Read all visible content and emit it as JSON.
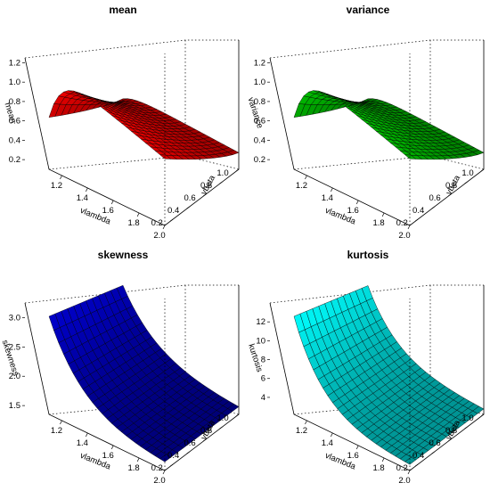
{
  "chart_data": [
    {
      "type": "surface3d",
      "title": "mean",
      "xlabel": "vlambda",
      "ylabel": "vbeta",
      "zlabel": "mean",
      "x_ticks": [
        "1.2",
        "1.4",
        "1.6",
        "1.8",
        "2.0"
      ],
      "y_ticks": [
        "0.2",
        "0.4",
        "0.6",
        "0.8",
        "1.0"
      ],
      "z_ticks": [
        "0.2",
        "0.4",
        "0.6",
        "0.8",
        "1.0",
        "1.2"
      ],
      "xlim": [
        1.1,
        2.0
      ],
      "ylim": [
        0.1,
        1.0
      ],
      "zlim": [
        0.1,
        1.25
      ],
      "color": "#ff0000",
      "surface_range": [
        0.14,
        0.93
      ]
    },
    {
      "type": "surface3d",
      "title": "variance",
      "xlabel": "vlambda",
      "ylabel": "vbeta",
      "zlabel": "variance",
      "x_ticks": [
        "1.2",
        "1.4",
        "1.6",
        "1.8",
        "2.0"
      ],
      "y_ticks": [
        "0.2",
        "0.4",
        "0.6",
        "0.8",
        "1.0"
      ],
      "z_ticks": [
        "0.2",
        "0.4",
        "0.6",
        "0.8",
        "1.0",
        "1.2"
      ],
      "xlim": [
        1.1,
        2.0
      ],
      "ylim": [
        0.1,
        1.0
      ],
      "zlim": [
        0.1,
        1.25
      ],
      "color": "#00cc00",
      "surface_range": [
        0.14,
        0.93
      ]
    },
    {
      "type": "surface3d",
      "title": "skewness",
      "xlabel": "vlambda",
      "ylabel": "vbeta",
      "zlabel": "skewness",
      "x_ticks": [
        "1.2",
        "1.4",
        "1.6",
        "1.8",
        "2.0"
      ],
      "y_ticks": [
        "0.2",
        "0.4",
        "0.6",
        "0.8",
        "1.0"
      ],
      "z_ticks": [
        "1.5",
        "2.0",
        "2.5",
        "3.0"
      ],
      "xlim": [
        1.1,
        2.0
      ],
      "ylim": [
        0.1,
        1.0
      ],
      "zlim": [
        1.35,
        3.25
      ],
      "color": "#0000cc",
      "surface_range": [
        1.41,
        3.24
      ]
    },
    {
      "type": "surface3d",
      "title": "kurtosis",
      "xlabel": "vlambda",
      "ylabel": "vbeta",
      "zlabel": "kurtosis",
      "x_ticks": [
        "1.2",
        "1.4",
        "1.6",
        "1.8",
        "2.0"
      ],
      "y_ticks": [
        "0.2",
        "0.4",
        "0.6",
        "0.8",
        "1.0"
      ],
      "z_ticks": [
        "4",
        "6",
        "8",
        "10",
        "12"
      ],
      "xlim": [
        1.1,
        2.0
      ],
      "ylim": [
        0.1,
        1.0
      ],
      "zlim": [
        2.2,
        14.0
      ],
      "color": "#00ffff",
      "surface_range": [
        2.6,
        13.9
      ]
    }
  ]
}
